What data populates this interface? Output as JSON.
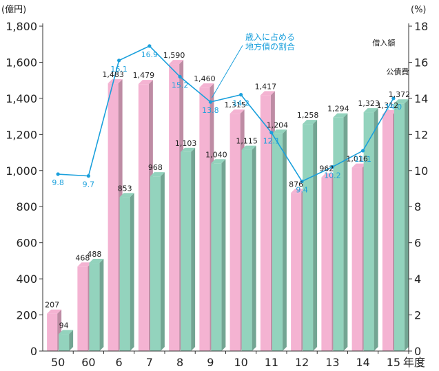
{
  "chart_data": {
    "type": "bar",
    "categories": [
      "50",
      "60",
      "6",
      "7",
      "8",
      "9",
      "10",
      "11",
      "12",
      "13",
      "14",
      "15"
    ],
    "x_suffix": "年度",
    "y_unit": "(億円)",
    "y2_unit": "(%)",
    "ylim": [
      0,
      1800
    ],
    "y_ticks": [
      "0",
      "200",
      "400",
      "600",
      "800",
      "1,000",
      "1,200",
      "1,400",
      "1,600",
      "1,800"
    ],
    "y2lim": [
      0,
      18
    ],
    "y2_ticks": [
      "0",
      "2",
      "4",
      "6",
      "8",
      "10",
      "12",
      "14",
      "16",
      "18"
    ],
    "series": [
      {
        "name": "借入額",
        "color": "#f4b3d2",
        "values": [
          207,
          468,
          1483,
          1479,
          1590,
          1460,
          1315,
          1417,
          876,
          962,
          1016,
          1312
        ],
        "labels": [
          "207",
          "468",
          "1,483",
          "1,479",
          "1,590",
          "1,460",
          "1,315",
          "1,417",
          "876",
          "962",
          "1,016",
          "1,312"
        ]
      },
      {
        "name": "公債費",
        "color": "#93d3bd",
        "values": [
          94,
          488,
          853,
          968,
          1103,
          1040,
          1115,
          1204,
          1258,
          1294,
          1323,
          1372
        ],
        "labels": [
          "94",
          "488",
          "853",
          "968",
          "1,103",
          "1,040",
          "1,115",
          "1,204",
          "1,258",
          "1,294",
          "1,323",
          "1,372"
        ]
      }
    ],
    "ratio": {
      "name": "歳入に占める\n地方債の割合",
      "name_lines": [
        "歳入に占める",
        "地方債の割合"
      ],
      "color": "#1aa0dc",
      "values": [
        9.8,
        9.7,
        16.1,
        16.9,
        15.2,
        13.8,
        14.2,
        12.1,
        9.4,
        10.2,
        11.1,
        14.0
      ],
      "labels": [
        "9.8",
        "9.7",
        "16.1",
        "16.9",
        "15.2",
        "13.8",
        "14.2",
        "12.1",
        "9.4",
        "10.2",
        "11.1",
        "14.0"
      ]
    },
    "grid": false
  }
}
